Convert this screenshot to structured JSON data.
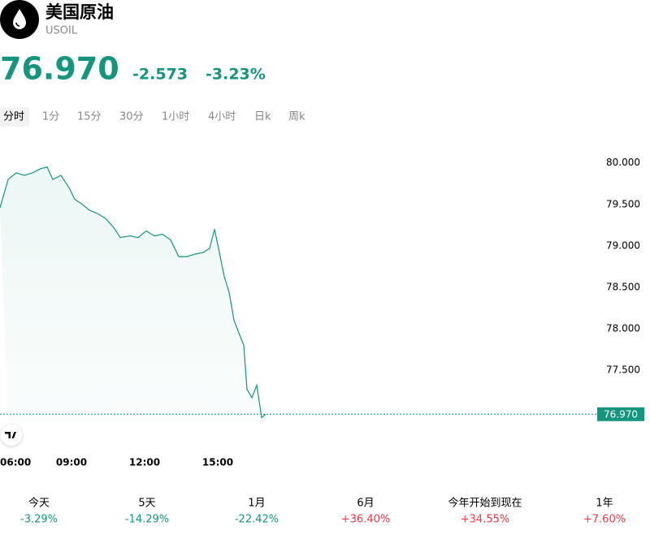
{
  "header": {
    "title": "美国原油",
    "symbol": "USOIL"
  },
  "quote": {
    "price": "76.970",
    "change": "-2.573",
    "change_percent": "-3.23%"
  },
  "tabs": [
    "分时",
    "1分",
    "15分",
    "30分",
    "1小时",
    "4小时",
    "日k",
    "周k"
  ],
  "chart_data": {
    "type": "line",
    "color": "#14967e",
    "x": [
      "06:04",
      "06:24",
      "06:44",
      "07:04",
      "07:24",
      "07:44",
      "08:00",
      "08:14",
      "08:34",
      "08:54",
      "09:08",
      "09:24",
      "09:44",
      "10:04",
      "10:24",
      "10:44",
      "11:00",
      "11:24",
      "11:44",
      "12:04",
      "12:24",
      "12:44",
      "13:04",
      "13:24",
      "13:44",
      "14:04",
      "14:24",
      "14:40",
      "14:52",
      "15:04",
      "15:16",
      "15:28",
      "15:40",
      "15:52",
      "16:04",
      "16:12",
      "16:24",
      "16:36",
      "16:48",
      "16:58"
    ],
    "values": [
      79.46,
      79.8,
      79.88,
      79.85,
      79.88,
      79.93,
      79.95,
      79.8,
      79.85,
      79.7,
      79.56,
      79.51,
      79.43,
      79.39,
      79.33,
      79.22,
      79.1,
      79.12,
      79.1,
      79.18,
      79.12,
      79.14,
      79.07,
      78.87,
      78.87,
      78.9,
      78.92,
      78.97,
      79.2,
      78.92,
      78.63,
      78.44,
      78.1,
      77.95,
      77.8,
      77.27,
      77.17,
      77.32,
      76.93,
      76.97
    ],
    "xticks": [
      "06:00",
      "09:00",
      "12:00",
      "15:00"
    ],
    "ylim": [
      76.875,
      80.3
    ],
    "yticks": [
      {
        "value": 77.5,
        "label": "77.500"
      },
      {
        "value": 78,
        "label": "78.000"
      },
      {
        "value": 78.5,
        "label": "78.500"
      },
      {
        "value": 79,
        "label": "79.000"
      },
      {
        "value": 79.5,
        "label": "79.500"
      },
      {
        "value": 80,
        "label": "80.000"
      }
    ]
  },
  "performance": [
    {
      "label": "今天",
      "value": "-3.29%"
    },
    {
      "label": "5天",
      "value": "-14.29%"
    },
    {
      "label": "1月",
      "value": "-22.42%"
    },
    {
      "label": "6月",
      "value": "+36.40%"
    },
    {
      "label": "今年开始到现在",
      "value": "+34.55%"
    },
    {
      "label": "1年",
      "value": "+7.60%"
    }
  ]
}
